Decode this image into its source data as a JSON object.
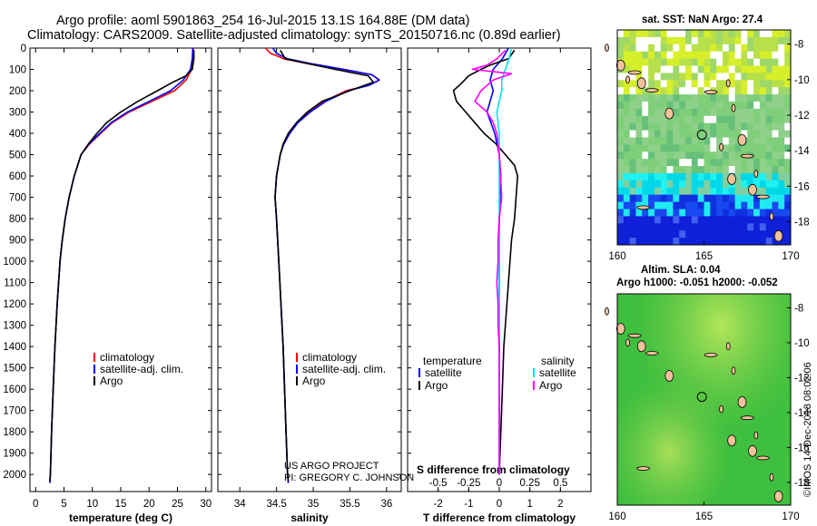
{
  "header": {
    "line1": "Argo profile: aoml 5901863_254 16-Jul-2015 13.1S 164.88E (DM data)",
    "line2": "Climatology: CARS2009. Satellite-adjusted climatology: synTS_20150716.nc (0.89d earlier)"
  },
  "credit": {
    "project": "US ARGO PROJECT",
    "pi": "PI: GREGORY C. JOHNSON",
    "imos": "©IMOS 14-Dec-2018 08:02:06"
  },
  "colors": {
    "climatology": "#ff0000",
    "satellite": "#0000ff",
    "argo": "#000000",
    "salinity_sat": "#00e5ee",
    "salinity_argo": "#ff00ff"
  },
  "chart_data": [
    {
      "id": "temperature",
      "type": "line",
      "xlabel": "temperature (deg C)",
      "xlim": [
        -1,
        31
      ],
      "xticks": [
        "0",
        "5",
        "10",
        "15",
        "20",
        "25",
        "30"
      ],
      "ylim": [
        2080,
        0
      ],
      "yticks": [
        "0",
        "100",
        "200",
        "300",
        "400",
        "500",
        "600",
        "700",
        "800",
        "900",
        "1000",
        "1100",
        "1200",
        "1300",
        "1400",
        "1500",
        "1600",
        "1700",
        "1800",
        "1900",
        "2000"
      ],
      "legend": [
        "climatology",
        "satellite-adj. clim.",
        "Argo"
      ],
      "series": [
        {
          "name": "climatology",
          "color": "#ff0000",
          "depth": [
            0,
            50,
            100,
            150,
            200,
            250,
            300,
            350,
            400,
            450,
            500,
            600,
            700,
            800,
            900,
            1000,
            1200,
            1400,
            1600,
            1800,
            2000,
            2040
          ],
          "values": [
            27.8,
            27.7,
            27.5,
            26.5,
            24.5,
            20.5,
            16.5,
            13.5,
            11.5,
            9.5,
            8.0,
            6.8,
            5.9,
            5.2,
            4.7,
            4.3,
            3.8,
            3.4,
            3.1,
            2.8,
            2.6,
            2.5
          ]
        },
        {
          "name": "satellite-adj. clim.",
          "color": "#0000ff",
          "depth": [
            0,
            50,
            100,
            150,
            200,
            250,
            300,
            350,
            400,
            450,
            500,
            600,
            700,
            800,
            900,
            1000,
            1200,
            1400,
            1600,
            1800,
            2000,
            2040
          ],
          "values": [
            27.7,
            27.6,
            27.3,
            26.0,
            23.8,
            20.0,
            16.2,
            13.3,
            11.3,
            9.4,
            8.0,
            6.8,
            5.9,
            5.2,
            4.7,
            4.3,
            3.8,
            3.4,
            3.1,
            2.8,
            2.6,
            2.5
          ]
        },
        {
          "name": "Argo",
          "color": "#000000",
          "depth": [
            10,
            50,
            100,
            130,
            160,
            200,
            250,
            300,
            350,
            400,
            450,
            500,
            600,
            700,
            800,
            900,
            1000,
            1200,
            1400,
            1600,
            1800,
            2000,
            2030
          ],
          "values": [
            27.9,
            27.9,
            27.6,
            26.5,
            24.2,
            21.5,
            18.0,
            15.0,
            12.5,
            10.8,
            9.3,
            8.0,
            6.8,
            5.9,
            5.2,
            4.7,
            4.3,
            3.8,
            3.4,
            3.1,
            2.8,
            2.6,
            2.5
          ]
        }
      ]
    },
    {
      "id": "salinity",
      "type": "line",
      "xlabel": "salinity",
      "xlim": [
        33.7,
        36.2
      ],
      "xticks": [
        "34",
        "34.5",
        "35",
        "35.5",
        "36"
      ],
      "ylim": [
        2080,
        0
      ],
      "legend": [
        "climatology",
        "satellite-adj. clim.",
        "Argo"
      ],
      "series": [
        {
          "name": "climatology",
          "color": "#ff0000",
          "depth": [
            0,
            25,
            50,
            75,
            100,
            125,
            150,
            175,
            200,
            250,
            300,
            350,
            400,
            450,
            500,
            600,
            700,
            800,
            1000,
            1200,
            1400,
            1600,
            1800,
            2000,
            2040
          ],
          "values": [
            34.35,
            34.42,
            34.6,
            34.95,
            35.4,
            35.8,
            35.9,
            35.75,
            35.45,
            35.15,
            34.95,
            34.78,
            34.68,
            34.6,
            34.55,
            34.5,
            34.48,
            34.5,
            34.53,
            34.56,
            34.59,
            34.61,
            34.63,
            34.65,
            34.66
          ]
        },
        {
          "name": "satellite-adj. clim.",
          "color": "#0000ff",
          "depth": [
            0,
            25,
            50,
            75,
            100,
            125,
            150,
            175,
            200,
            250,
            300,
            350,
            400,
            450,
            500,
            600,
            700,
            800,
            1000,
            1200,
            1400,
            1600,
            1800,
            2000,
            2040
          ],
          "values": [
            34.45,
            34.5,
            34.65,
            35.0,
            35.42,
            35.8,
            35.9,
            35.76,
            35.48,
            35.17,
            34.96,
            34.79,
            34.68,
            34.6,
            34.55,
            34.5,
            34.48,
            34.5,
            34.53,
            34.56,
            34.59,
            34.61,
            34.63,
            34.65,
            34.66
          ]
        },
        {
          "name": "Argo",
          "color": "#000000",
          "depth": [
            10,
            50,
            100,
            130,
            160,
            200,
            250,
            300,
            350,
            400,
            450,
            500,
            600,
            700,
            800,
            1000,
            1200,
            1400,
            1600,
            1800,
            2000,
            2030
          ],
          "values": [
            34.55,
            34.62,
            35.3,
            35.75,
            35.82,
            35.5,
            35.12,
            34.92,
            34.77,
            34.66,
            34.59,
            34.55,
            34.5,
            34.48,
            34.5,
            34.53,
            34.56,
            34.59,
            34.61,
            34.63,
            34.65,
            34.66
          ]
        }
      ]
    },
    {
      "id": "difference",
      "type": "line",
      "xlabel": "T difference from climatology",
      "xlabel_top": "S difference from climatology",
      "xlim": [
        -3,
        3
      ],
      "xticks": [
        "-2",
        "-1",
        "0",
        "1",
        "2"
      ],
      "xticks_top": [
        "-0.5",
        "-0.25",
        "0",
        "0.25",
        "0.5"
      ],
      "ylim": [
        2080,
        0
      ],
      "legend_headers": [
        "temperature",
        "salinity"
      ],
      "legend_left": [
        "satellite",
        "Argo"
      ],
      "legend_right": [
        "satellite",
        "Argo"
      ],
      "series": [
        {
          "name": "T satellite",
          "color": "#0000ff",
          "depth": [
            0,
            50,
            100,
            150,
            200,
            250,
            300,
            400,
            500,
            600,
            800,
            1000,
            1500,
            2000
          ],
          "values": [
            0.3,
            0.1,
            -0.2,
            -0.3,
            -0.2,
            -0.3,
            -0.4,
            -0.15,
            0.0,
            0.05,
            0.0,
            0.0,
            0.0,
            0.0
          ]
        },
        {
          "name": "T Argo",
          "color": "#000000",
          "depth": [
            10,
            50,
            80,
            100,
            130,
            160,
            200,
            250,
            300,
            350,
            400,
            450,
            500,
            550,
            600,
            700,
            800,
            900,
            1000,
            1200,
            1400,
            1600,
            1800,
            2000
          ],
          "values": [
            0.5,
            0.3,
            -0.3,
            -0.6,
            -1.0,
            -1.2,
            -1.5,
            -1.4,
            -1.1,
            -0.8,
            -0.5,
            -0.1,
            0.2,
            0.5,
            0.6,
            0.55,
            0.5,
            0.4,
            0.35,
            0.25,
            0.15,
            0.1,
            0.05,
            0.0
          ]
        },
        {
          "name": "S satellite",
          "color": "#00e5ee",
          "depth": [
            0,
            50,
            100,
            150,
            200,
            250,
            300,
            400,
            500,
            600,
            700,
            800,
            1000,
            1500,
            2000
          ],
          "values": [
            0.1,
            0.08,
            0.05,
            0.02,
            0.02,
            0.0,
            -0.02,
            0.0,
            0.0,
            0.0,
            0.0,
            0.0,
            0.0,
            0.0,
            0.0
          ]
        },
        {
          "name": "S Argo",
          "color": "#ff00ff",
          "depth": [
            10,
            50,
            80,
            100,
            120,
            150,
            200,
            250,
            300,
            350,
            400,
            500,
            600,
            700,
            800,
            900,
            1000,
            1100,
            1200,
            1300,
            1400,
            1500,
            1600,
            1800,
            2000
          ],
          "values": [
            0.05,
            -0.02,
            -0.1,
            -0.22,
            0.1,
            -0.05,
            -0.15,
            -0.2,
            -0.1,
            -0.05,
            -0.02,
            0.0,
            0.01,
            0.02,
            0.0,
            -0.01,
            -0.01,
            -0.02,
            -0.01,
            -0.01,
            0.0,
            0.0,
            0.0,
            0.0,
            0.0
          ]
        }
      ]
    },
    {
      "id": "sst-map",
      "type": "heatmap",
      "title": "sat. SST: NaN Argo: 27.4",
      "xticks": [
        "160",
        "165",
        "170"
      ],
      "yticks": [
        "-8",
        "-10",
        "-12",
        "-14",
        "-16",
        "-18"
      ]
    },
    {
      "id": "sla-map",
      "type": "heatmap",
      "title1": "Altim. SLA: 0.04",
      "title2": "Argo h1000: -0.051 h2000: -0.052",
      "xticks": [
        "160",
        "165",
        "170"
      ],
      "yticks": [
        "-8",
        "-10",
        "-12",
        "-14",
        "-16",
        "-18"
      ]
    }
  ]
}
